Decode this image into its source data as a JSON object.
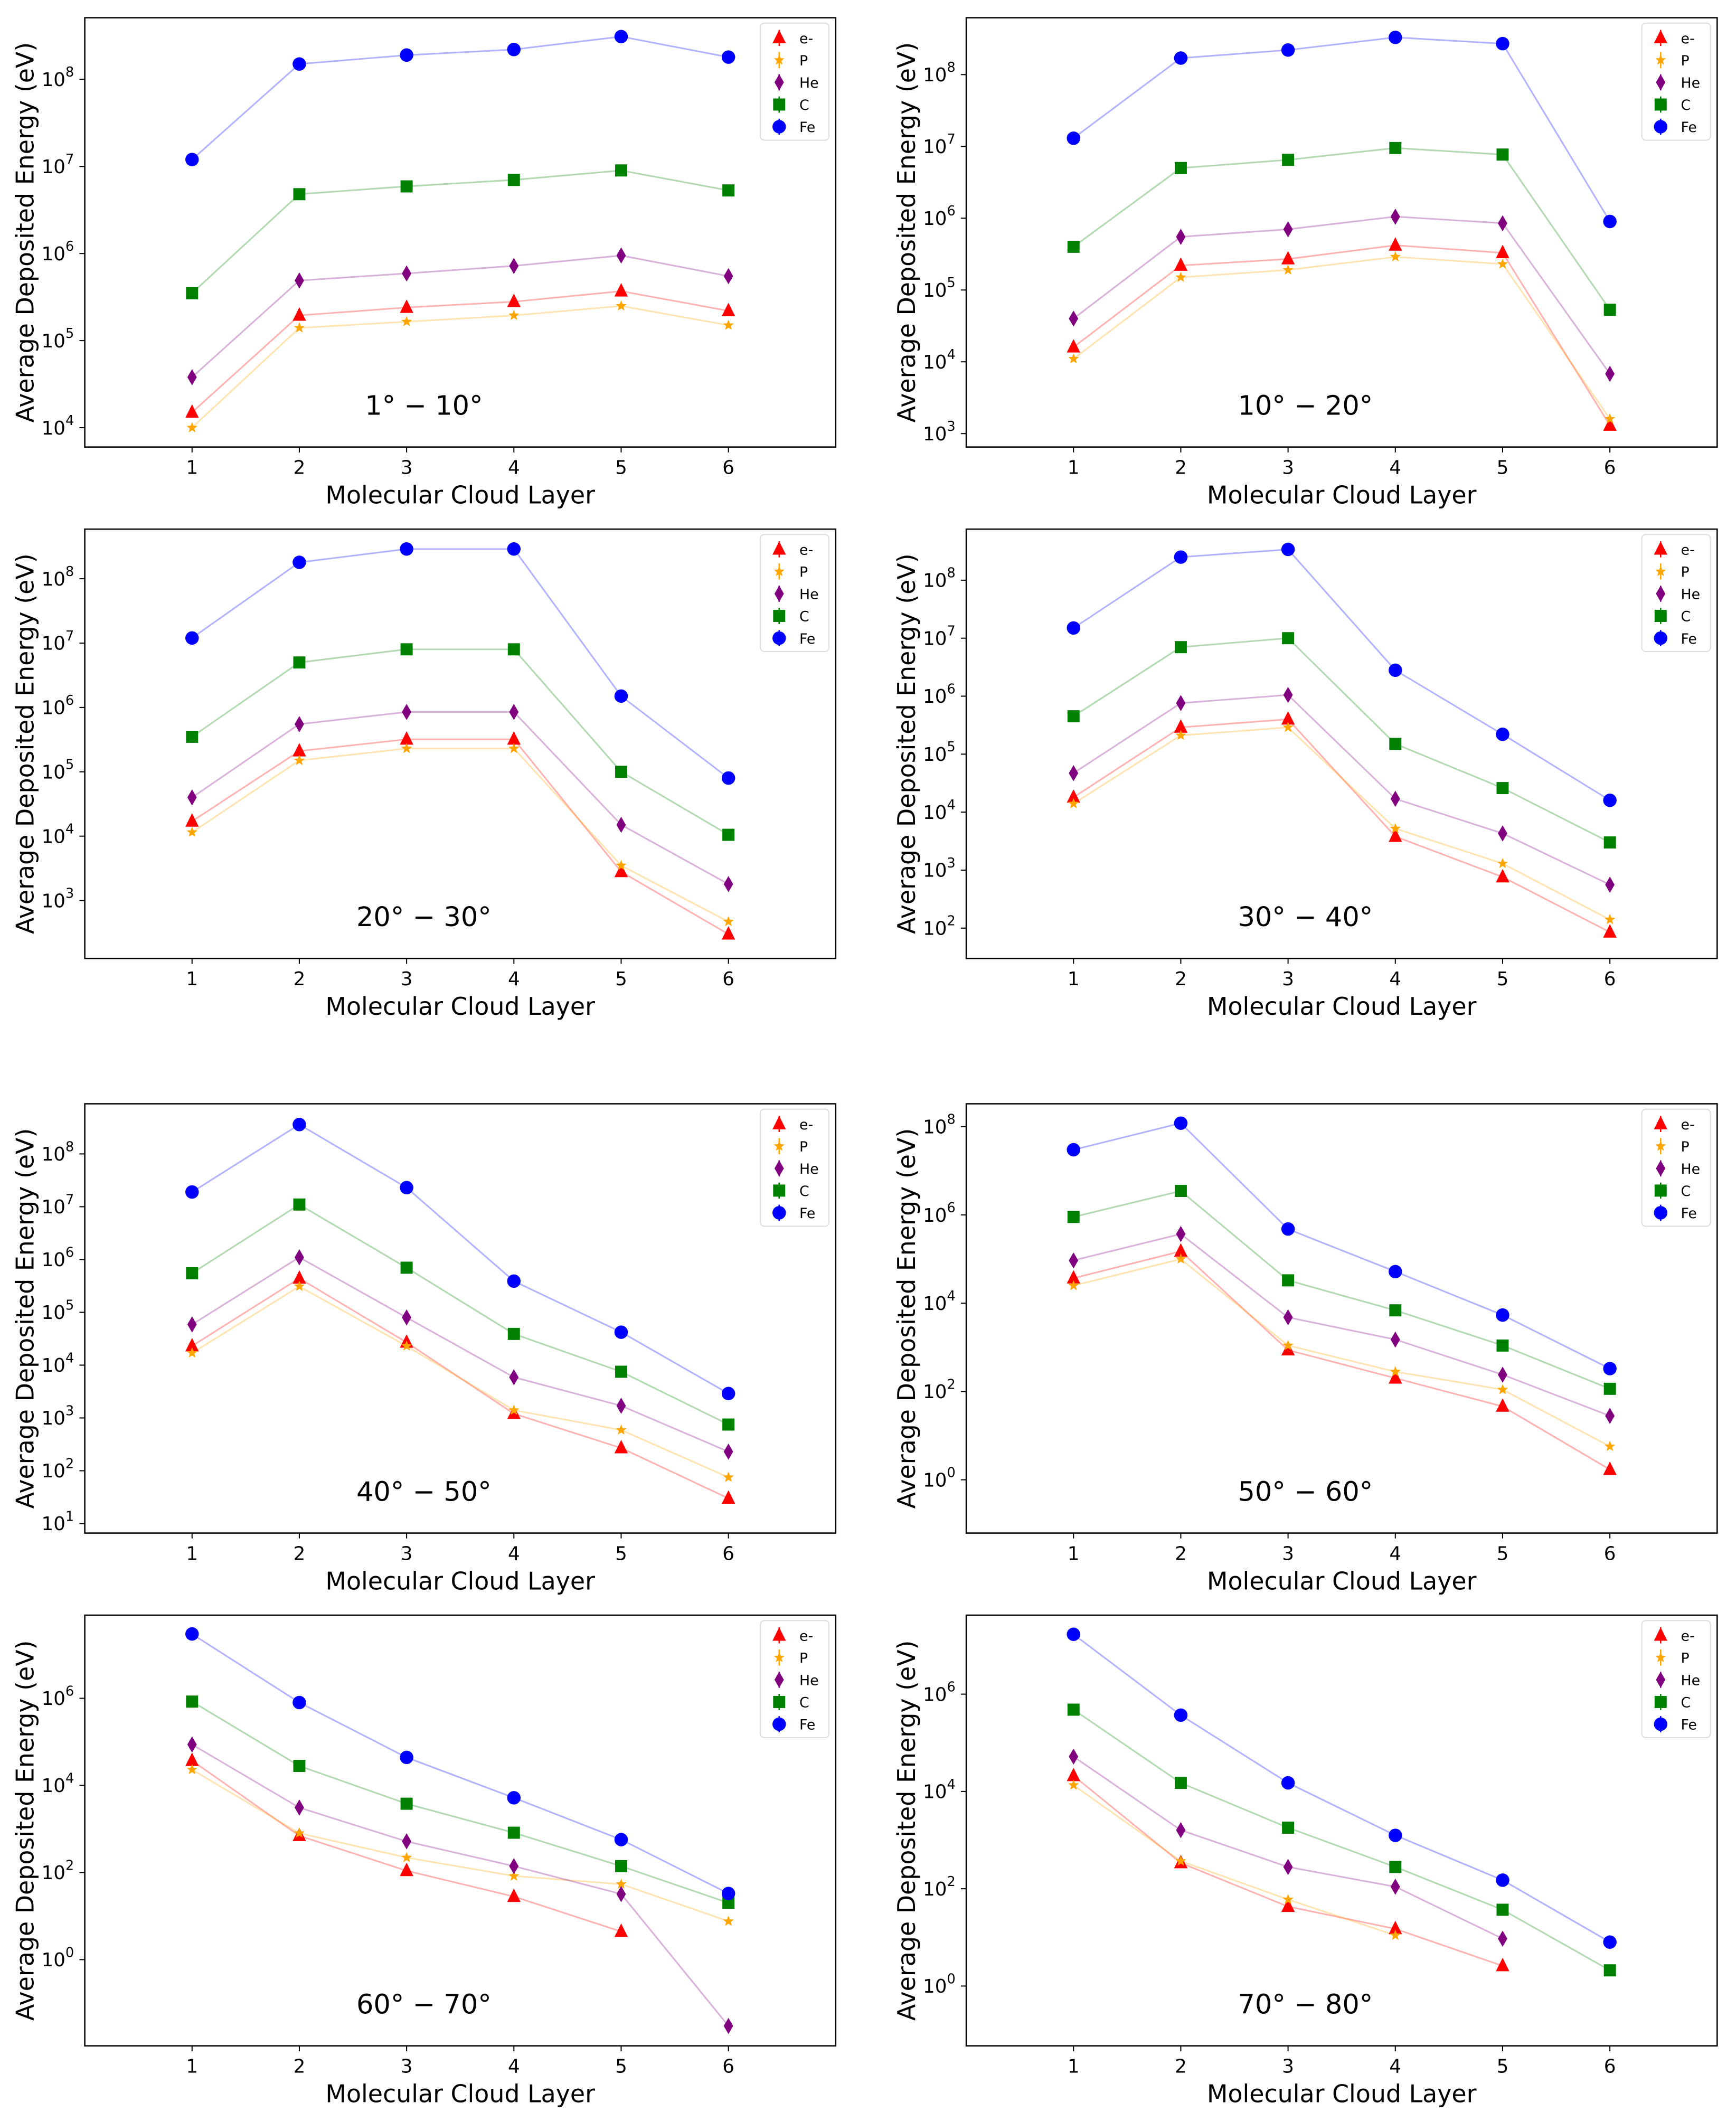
{
  "figure": {
    "xlabel": "Molecular Cloud Layer",
    "ylabel": "Average Deposited Energy (eV)",
    "series_style": [
      {
        "name": "e-",
        "color": "#ff0000",
        "marker": "triangle"
      },
      {
        "name": "P",
        "color": "#ffa500",
        "marker": "star"
      },
      {
        "name": "He",
        "color": "#800080",
        "marker": "thin-diamond"
      },
      {
        "name": "C",
        "color": "#008000",
        "marker": "square"
      },
      {
        "name": "Fe",
        "color": "#0000ff",
        "marker": "circle"
      }
    ]
  },
  "chart_data": [
    {
      "type": "line",
      "title": "1° − 10°",
      "xlabel": "Molecular Cloud Layer",
      "ylabel": "Average Deposited Energy (eV)",
      "yscale": "log",
      "x": [
        1,
        2,
        3,
        4,
        5,
        6
      ],
      "xlim": [
        0,
        7
      ],
      "ylim": [
        6000.0,
        510000000.0
      ],
      "ytick_exponents": [
        4,
        5,
        6,
        7,
        8
      ],
      "legend": "top-right",
      "series": [
        {
          "name": "e-",
          "values": [
            15000.0,
            195000.0,
            240000.0,
            280000.0,
            370000.0,
            220000.0
          ]
        },
        {
          "name": "P",
          "values": [
            10000.0,
            140000.0,
            165000.0,
            195000.0,
            250000.0,
            150000.0
          ]
        },
        {
          "name": "He",
          "values": [
            38000.0,
            490000.0,
            590000.0,
            720000.0,
            950000.0,
            550000.0
          ]
        },
        {
          "name": "C",
          "values": [
            350000.0,
            4800000.0,
            5900000.0,
            7000000.0,
            9000000.0,
            5300000.0
          ]
        },
        {
          "name": "Fe",
          "values": [
            12000000.0,
            150000000.0,
            190000000.0,
            220000000.0,
            310000000.0,
            180000000.0
          ]
        }
      ]
    },
    {
      "type": "line",
      "title": "10° − 20°",
      "xlabel": "Molecular Cloud Layer",
      "ylabel": "Average Deposited Energy (eV)",
      "yscale": "log",
      "x": [
        1,
        2,
        3,
        4,
        5,
        6
      ],
      "xlim": [
        0,
        7
      ],
      "ylim": [
        650,
        620000000.0
      ],
      "ytick_exponents": [
        3,
        4,
        5,
        6,
        7,
        8
      ],
      "legend": "top-right",
      "series": [
        {
          "name": "e-",
          "values": [
            16000.0,
            220000.0,
            270000.0,
            420000.0,
            330000.0,
            1300.0
          ]
        },
        {
          "name": "P",
          "values": [
            11000.0,
            150000.0,
            190000.0,
            290000.0,
            230000.0,
            1600.0
          ]
        },
        {
          "name": "He",
          "values": [
            40000.0,
            550000.0,
            700000.0,
            1050000.0,
            850000.0,
            6800.0
          ]
        },
        {
          "name": "C",
          "values": [
            400000.0,
            5000000.0,
            6500000.0,
            9500000.0,
            7700000.0,
            53000.0
          ]
        },
        {
          "name": "Fe",
          "values": [
            13000000.0,
            170000000.0,
            220000000.0,
            330000000.0,
            270000000.0,
            900000.0
          ]
        }
      ]
    },
    {
      "type": "line",
      "title": "20° − 30°",
      "xlabel": "Molecular Cloud Layer",
      "ylabel": "Average Deposited Energy (eV)",
      "yscale": "log",
      "x": [
        1,
        2,
        3,
        4,
        5,
        6
      ],
      "xlim": [
        0,
        7
      ],
      "ylim": [
        126,
        590000000.0
      ],
      "ytick_exponents": [
        3,
        4,
        5,
        6,
        7,
        8
      ],
      "legend": "top-right",
      "series": [
        {
          "name": "e-",
          "values": [
            17000.0,
            210000.0,
            320000.0,
            320000.0,
            2800.0,
            300.0
          ]
        },
        {
          "name": "P",
          "values": [
            11500.0,
            150000.0,
            230000.0,
            230000.0,
            3500.0,
            470.0
          ]
        },
        {
          "name": "He",
          "values": [
            40000.0,
            550000.0,
            850000.0,
            850000.0,
            15000.0,
            1800.0
          ]
        },
        {
          "name": "C",
          "values": [
            350000.0,
            5000000.0,
            8000000.0,
            8000000.0,
            100000.0,
            10500.0
          ]
        },
        {
          "name": "Fe",
          "values": [
            12000000.0,
            180000000.0,
            290000000.0,
            290000000.0,
            1500000.0,
            80000.0
          ]
        }
      ]
    },
    {
      "type": "line",
      "title": "30° − 40°",
      "xlabel": "Molecular Cloud Layer",
      "ylabel": "Average Deposited Energy (eV)",
      "yscale": "log",
      "x": [
        1,
        2,
        3,
        4,
        5,
        6
      ],
      "xlim": [
        0,
        7
      ],
      "ylim": [
        30,
        760000000.0
      ],
      "ytick_exponents": [
        2,
        3,
        4,
        5,
        6,
        7,
        8
      ],
      "legend": "top-right",
      "series": [
        {
          "name": "e-",
          "values": [
            18000.0,
            290000.0,
            400000.0,
            3800.0,
            760.0,
            85
          ]
        },
        {
          "name": "P",
          "values": [
            14000.0,
            210000.0,
            290000.0,
            5200.0,
            1300.0,
            140
          ]
        },
        {
          "name": "He",
          "values": [
            47000.0,
            760000.0,
            1050000.0,
            17000.0,
            4300.0,
            560.0
          ]
        },
        {
          "name": "C",
          "values": [
            450000.0,
            7000000.0,
            10000000.0,
            150000.0,
            26000.0,
            3000.0
          ]
        },
        {
          "name": "Fe",
          "values": [
            15000000.0,
            250000000.0,
            340000000.0,
            2800000.0,
            220000.0,
            16000.0
          ]
        }
      ]
    },
    {
      "type": "line",
      "title": "40° − 50°",
      "xlabel": "Molecular Cloud Layer",
      "ylabel": "Average Deposited Energy (eV)",
      "yscale": "log",
      "x": [
        1,
        2,
        3,
        4,
        5,
        6
      ],
      "xlim": [
        0,
        7
      ],
      "ylim": [
        6.6,
        890000000.0
      ],
      "ytick_exponents": [
        1,
        2,
        3,
        4,
        5,
        6,
        7,
        8
      ],
      "legend": "top-right",
      "series": [
        {
          "name": "e-",
          "values": [
            23000.0,
            440000.0,
            27000.0,
            1200.0,
            270.0,
            30
          ]
        },
        {
          "name": "P",
          "values": [
            17000.0,
            310000.0,
            23000.0,
            1400.0,
            590.0,
            75
          ]
        },
        {
          "name": "He",
          "values": [
            59000.0,
            1100000.0,
            80000.0,
            5900.0,
            1700.0,
            230.0
          ]
        },
        {
          "name": "C",
          "values": [
            550000.0,
            11000000.0,
            700000.0,
            39000.0,
            7500.0,
            750.0
          ]
        },
        {
          "name": "Fe",
          "values": [
            19000000.0,
            360000000.0,
            23000000.0,
            390000.0,
            42000.0,
            2900.0
          ]
        }
      ]
    },
    {
      "type": "line",
      "title": "50° − 60°",
      "xlabel": "Molecular Cloud Layer",
      "ylabel": "Average Deposited Energy (eV)",
      "yscale": "log",
      "x": [
        1,
        2,
        3,
        4,
        5,
        6
      ],
      "xlim": [
        0,
        7
      ],
      "ylim": [
        0.062,
        330000000.0
      ],
      "ytick_exponents": [
        0,
        2,
        4,
        6,
        8
      ],
      "legend": "top-right",
      "series": [
        {
          "name": "e-",
          "values": [
            37000.0,
            150000.0,
            870,
            200,
            46,
            1.7
          ]
        },
        {
          "name": "P",
          "values": [
            25000.0,
            100000.0,
            1100.0,
            280,
            110,
            5.7
          ]
        },
        {
          "name": "He",
          "values": [
            93000.0,
            370000.0,
            4800.0,
            1500.0,
            240,
            28
          ]
        },
        {
          "name": "C",
          "values": [
            900000.0,
            3500000.0,
            33000.0,
            6900.0,
            1100.0,
            115
          ]
        },
        {
          "name": "Fe",
          "values": [
            30000000.0,
            120000000.0,
            480000.0,
            52000.0,
            5400.0,
            330
          ]
        }
      ]
    },
    {
      "type": "line",
      "title": "60° − 70°",
      "xlabel": "Molecular Cloud Layer",
      "ylabel": "Average Deposited Energy (eV)",
      "yscale": "log",
      "x": [
        1,
        2,
        3,
        4,
        5,
        6
      ],
      "xlim": [
        0,
        7
      ],
      "ylim": [
        0.0105,
        81000000.0
      ],
      "ytick_exponents": [
        0,
        2,
        4,
        6
      ],
      "legend": "top-right",
      "series": [
        {
          "name": "e-",
          "values": [
            37000.0,
            700,
            110,
            28,
            4.4,
            null
          ]
        },
        {
          "name": "P",
          "values": [
            23000.0,
            800,
            220,
            83,
            54,
            7.6
          ]
        },
        {
          "name": "He",
          "values": [
            87000.0,
            3100.0,
            520,
            140,
            32,
            0.03
          ]
        },
        {
          "name": "C",
          "values": [
            840000.0,
            28000.0,
            3800.0,
            820,
            140,
            20
          ]
        },
        {
          "name": "Fe",
          "values": [
            30000000.0,
            800000.0,
            44000.0,
            5200.0,
            570,
            33
          ]
        }
      ]
    },
    {
      "type": "line",
      "title": "70° − 80°",
      "xlabel": "Molecular Cloud Layer",
      "ylabel": "Average Deposited Energy (eV)",
      "yscale": "log",
      "x": [
        1,
        2,
        3,
        4,
        5,
        6
      ],
      "xlim": [
        0,
        7
      ],
      "ylim": [
        0.059,
        42000000.0
      ],
      "ytick_exponents": [
        0,
        2,
        4,
        6
      ],
      "legend": "top-right",
      "series": [
        {
          "name": "e-",
          "values": [
            21000.0,
            340,
            43,
            15,
            2.6,
            null
          ]
        },
        {
          "name": "P",
          "values": [
            13500.0,
            370,
            60,
            11,
            null,
            null
          ]
        },
        {
          "name": "He",
          "values": [
            52000.0,
            1600.0,
            280,
            110,
            9.4,
            null
          ]
        },
        {
          "name": "C",
          "values": [
            480000.0,
            15000.0,
            1800.0,
            280,
            37,
            2.1
          ]
        },
        {
          "name": "Fe",
          "values": [
            17000000.0,
            370000.0,
            15000.0,
            1250.0,
            150,
            8.0
          ]
        }
      ]
    }
  ]
}
